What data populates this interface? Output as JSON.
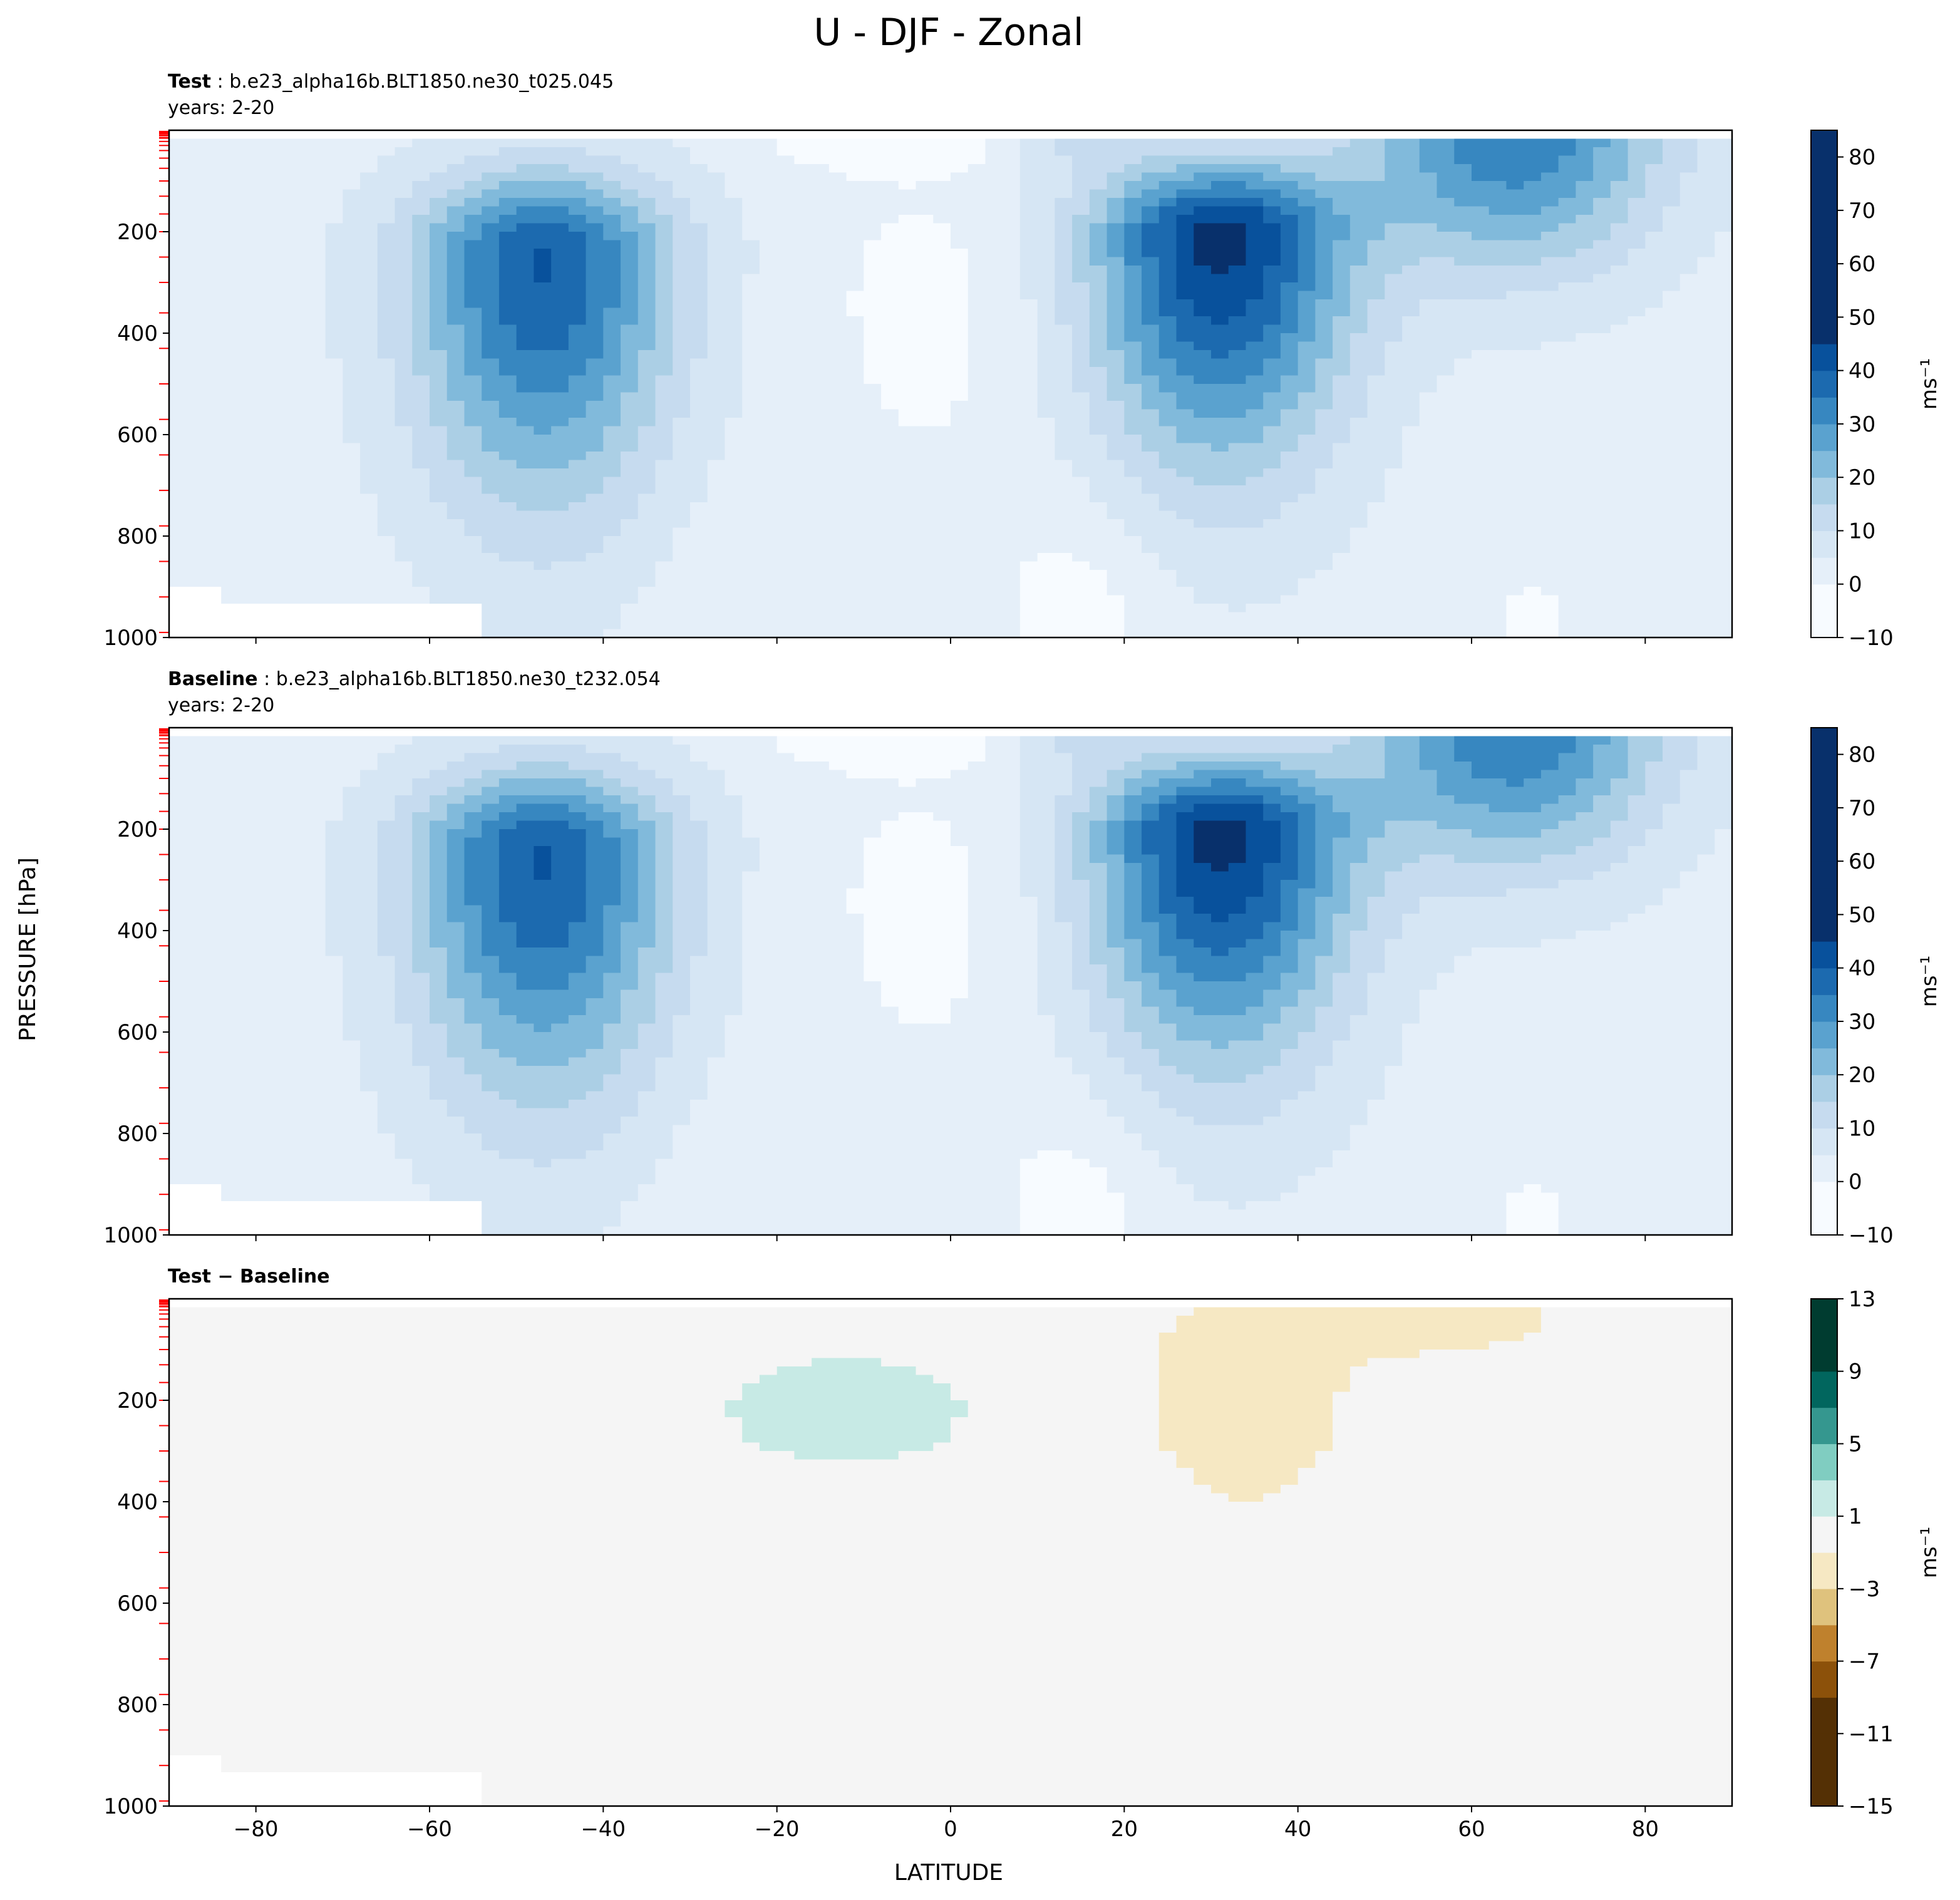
{
  "title": "U - DJF - Zonal",
  "ylabel": "PRESSURE [hPa]",
  "xlabel": "LATITUDE",
  "x_ticks": [
    -80,
    -60,
    -40,
    -20,
    0,
    20,
    40,
    60,
    80
  ],
  "x_tick_labels": [
    "−80",
    "−60",
    "−40",
    "−20",
    "0",
    "20",
    "40",
    "60",
    "80"
  ],
  "y_ticks": [
    200,
    400,
    600,
    800,
    1000
  ],
  "y_tick_labels": [
    "200",
    "400",
    "600",
    "800",
    "1000"
  ],
  "panels": {
    "test": {
      "name_bold": "Test",
      "sep": " : ",
      "case": "b.e23_alpha16b.BLT1850.ne30_t025.045",
      "years": "years: 2-20"
    },
    "baseline": {
      "name_bold": "Baseline",
      "sep": " : ",
      "case": "b.e23_alpha16b.BLT1850.ne30_t232.054",
      "years": "years: 2-20"
    },
    "diff": {
      "name_bold": "Test − Baseline"
    }
  },
  "colorbars": {
    "main": {
      "unit": "ms⁻¹",
      "tick_values": [
        -10,
        0,
        10,
        20,
        30,
        40,
        50,
        60,
        70,
        80
      ],
      "tick_labels": [
        "−10",
        "0",
        "10",
        "20",
        "30",
        "40",
        "50",
        "60",
        "70",
        "80"
      ],
      "range": [
        -10,
        85
      ],
      "level_step": 5
    },
    "diff": {
      "unit": "ms⁻¹",
      "tick_values": [
        -15,
        -11,
        -7,
        -3,
        1,
        5,
        9,
        13
      ],
      "tick_labels": [
        "−15",
        "−11",
        "−7",
        "−3",
        "1",
        "5",
        "9",
        "13"
      ],
      "range": [
        -15,
        13
      ],
      "level_step": 2
    }
  },
  "colors": {
    "blues": [
      "#f7fbff",
      "#e5eff9",
      "#d6e6f4",
      "#c6dbef",
      "#abcfe5",
      "#81badb",
      "#5aa2cf",
      "#3787c0",
      "#1c6aaf",
      "#08519c",
      "#08306b"
    ],
    "brbg_brown": [
      "#543005",
      "#8c510a",
      "#bf812d",
      "#dfc27d",
      "#f6e8c3"
    ],
    "brbg_green": [
      "#c7eae5",
      "#80cdc1",
      "#35978f",
      "#01665e",
      "#003c30"
    ],
    "diff_neutral": "#f5f5f5",
    "model_level_marks": "#ff0000"
  },
  "chart_data": [
    {
      "type": "contourf",
      "panel": "Test",
      "x_axis": "LATITUDE",
      "y_axis": "PRESSURE [hPa]",
      "xlim": [
        -90,
        90
      ],
      "ylim": [
        1000,
        0
      ],
      "jets": [
        {
          "lat": -47,
          "pressure": 250,
          "max_value": 40
        },
        {
          "lat": 31,
          "pressure": 200,
          "max_value": 45
        }
      ],
      "stratospheric_max": {
        "lat": 65,
        "pressure": 20,
        "value": 35
      }
    },
    {
      "type": "contourf",
      "panel": "Baseline",
      "x_axis": "LATITUDE",
      "y_axis": "PRESSURE [hPa]",
      "xlim": [
        -90,
        90
      ],
      "ylim": [
        1000,
        0
      ],
      "jets": [
        {
          "lat": -47,
          "pressure": 250,
          "max_value": 40
        },
        {
          "lat": 31,
          "pressure": 200,
          "max_value": 45
        }
      ],
      "stratospheric_max": {
        "lat": 65,
        "pressure": 20,
        "value": 35
      }
    },
    {
      "type": "contourf",
      "panel": "Test − Baseline",
      "x_axis": "LATITUDE",
      "y_axis": "PRESSURE [hPa]",
      "xlim": [
        -90,
        90
      ],
      "ylim": [
        1000,
        0
      ],
      "anomalies": [
        {
          "sign": "positive",
          "lat_range": [
            -30,
            7
          ],
          "pressure_range": [
            120,
            330
          ],
          "value_range": [
            1,
            3
          ]
        },
        {
          "sign": "negative",
          "lat_range": [
            20,
            60
          ],
          "pressure_range": [
            0,
            480
          ],
          "value_range": [
            -3,
            -1
          ]
        }
      ]
    }
  ]
}
